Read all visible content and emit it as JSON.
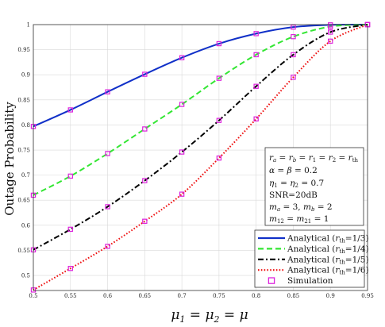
{
  "chart_data": {
    "type": "line",
    "title": "",
    "xlabel": "μ1 = μ2 = μ",
    "ylabel": "Outage Probability",
    "xlim": [
      0.5,
      0.95
    ],
    "ylim": [
      0.47,
      1.0
    ],
    "xticks": [
      "0.5",
      "0.55",
      "0.6",
      "0.65",
      "0.7",
      "0.75",
      "0.8",
      "0.85",
      "0.9",
      "0.95"
    ],
    "yticks": [
      "0.5",
      "0.55",
      "0.6",
      "0.65",
      "0.7",
      "0.75",
      "0.8",
      "0.85",
      "0.9",
      "0.95",
      "1"
    ],
    "grid": true,
    "legend_position": "bottom-right",
    "x": [
      0.5,
      0.55,
      0.6,
      0.65,
      0.7,
      0.75,
      0.8,
      0.85,
      0.9,
      0.95
    ],
    "series": [
      {
        "name": "Analytical (r_th=1/3)",
        "label": "Analytical (",
        "label_sub": "th",
        "label_tail": "=1/3)",
        "color": "#1030c8",
        "dash": "solid",
        "values": [
          0.797,
          0.83,
          0.866,
          0.901,
          0.934,
          0.962,
          0.982,
          0.995,
          0.9995,
          1.0
        ]
      },
      {
        "name": "Analytical (r_th=1/4)",
        "label": "Analytical (",
        "label_sub": "th",
        "label_tail": "=1/4)",
        "color": "#33e633",
        "dash": "dashed",
        "values": [
          0.66,
          0.698,
          0.743,
          0.792,
          0.841,
          0.893,
          0.94,
          0.976,
          0.996,
          1.0
        ]
      },
      {
        "name": "Analytical (r_th=1/5)",
        "label": "Analytical (",
        "label_sub": "th",
        "label_tail": "=1/5)",
        "color": "#000000",
        "dash": "dashdot",
        "values": [
          0.551,
          0.592,
          0.637,
          0.689,
          0.746,
          0.809,
          0.877,
          0.94,
          0.985,
          1.0
        ]
      },
      {
        "name": "Analytical (r_th=1/6)",
        "label": "Analytical (",
        "label_sub": "th",
        "label_tail": "=1/6)",
        "color": "#ee1111",
        "dash": "dotted",
        "values": [
          0.471,
          0.514,
          0.558,
          0.608,
          0.662,
          0.734,
          0.812,
          0.895,
          0.967,
          1.0
        ]
      },
      {
        "name": "Simulation",
        "label": "Simulation",
        "color": "#dd22dd",
        "marker": "square"
      }
    ],
    "annotation": {
      "lines": [
        "r_a = r_b = r_1 = r_2 = r_th",
        "α = β = 0.2",
        "η1 = η2 = 0.7",
        "SNR=20dB",
        "m_a = 3, m_b = 2",
        "m12 = m21 = 1"
      ]
    }
  }
}
